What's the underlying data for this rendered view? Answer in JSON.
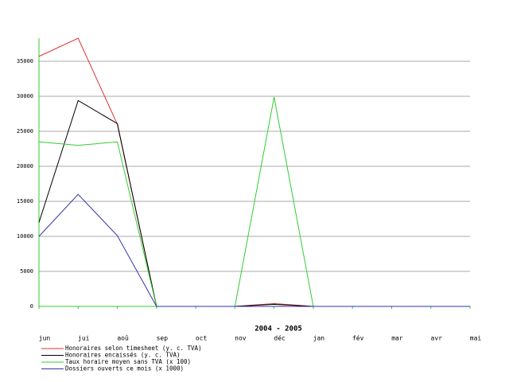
{
  "chart_data": {
    "type": "line",
    "xlabel": "2004 - 2005",
    "categories": [
      "jun",
      "jui",
      "aoû",
      "sep",
      "oct",
      "nov",
      "déc",
      "jan",
      "fév",
      "mar",
      "avr",
      "mai"
    ],
    "ylim": [
      0,
      38300
    ],
    "yticks": [
      0,
      5000,
      10000,
      15000,
      20000,
      25000,
      30000,
      35000
    ],
    "grid": true,
    "series": [
      {
        "name": "Honoraires selon timesheet (y. c. TVA)",
        "color": "#e03030",
        "values": [
          35700,
          38300,
          26000,
          0,
          0,
          0,
          400,
          0,
          0,
          0,
          0,
          0
        ]
      },
      {
        "name": "Honoraires encaissés (y. c. TVA)",
        "color": "#000000",
        "values": [
          12000,
          29400,
          26100,
          0,
          0,
          0,
          300,
          0,
          0,
          0,
          0,
          0
        ]
      },
      {
        "name": "Taux horaire moyen sans TVA (x 100)",
        "color": "#33cc33",
        "values": [
          23500,
          23000,
          23500,
          0,
          0,
          0,
          29900,
          0,
          0,
          0,
          0,
          0
        ]
      },
      {
        "name": "Dossiers ouverts ce mois (x 1000)",
        "color": "#3333aa",
        "values": [
          10000,
          16000,
          10100,
          0,
          0,
          0,
          0,
          0,
          0,
          0,
          0,
          0
        ]
      }
    ]
  }
}
